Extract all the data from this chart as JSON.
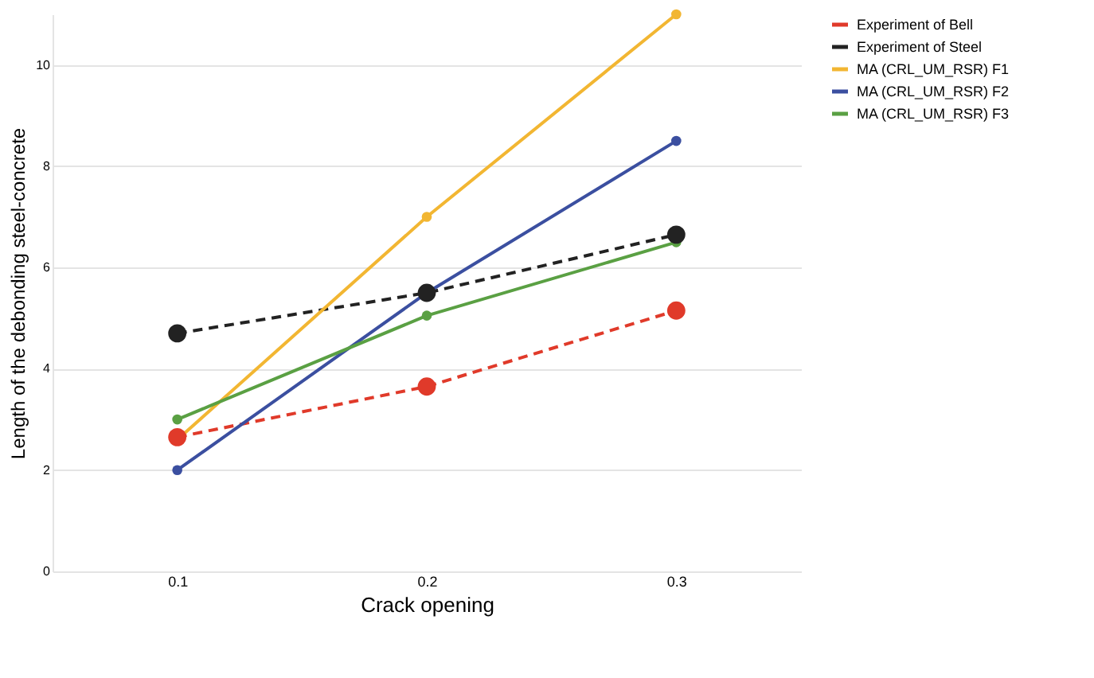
{
  "chart_data": {
    "type": "line",
    "xlabel": "Crack opening",
    "ylabel": "Length of the debonding steel-concrete",
    "categories": [
      "0.1",
      "0.2",
      "0.3"
    ],
    "ylim": [
      0,
      11
    ],
    "yticks": [
      0,
      2,
      4,
      6,
      8,
      10
    ],
    "grid": "y",
    "legend": "right",
    "marker": "circle",
    "series": [
      {
        "name": "Experiment of Bell",
        "color": "#e03a2a",
        "line_style": "dashed",
        "values": [
          2.65,
          3.65,
          5.15
        ]
      },
      {
        "name": "Experiment of Steel",
        "color": "#222222",
        "line_style": "dashed",
        "values": [
          4.7,
          5.5,
          6.65
        ]
      },
      {
        "name": "MA (CRL_UM_RSR) F1",
        "color": "#f2b632",
        "line_style": "solid",
        "values": [
          2.6,
          7.0,
          11.0
        ]
      },
      {
        "name": "MA (CRL_UM_RSR) F2",
        "color": "#3b4fa0",
        "line_style": "solid",
        "values": [
          2.0,
          5.5,
          8.5
        ]
      },
      {
        "name": "MA (CRL_UM_RSR) F3",
        "color": "#5aa043",
        "line_style": "solid",
        "values": [
          3.0,
          5.05,
          6.5
        ]
      }
    ]
  }
}
